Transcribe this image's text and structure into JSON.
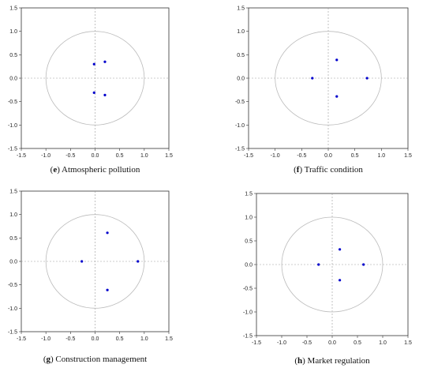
{
  "chart_data": [
    {
      "type": "scatter",
      "letter": "e",
      "caption": "Atmospheric pollution",
      "xlim": [
        -1.5,
        1.5
      ],
      "ylim": [
        -1.5,
        1.5
      ],
      "xticks": [
        "-1.5",
        "-1.0",
        "-0.5",
        "0.0",
        "0.5",
        "1.0",
        "1.5"
      ],
      "yticks": [
        "1.5",
        "1.0",
        "0.5",
        "0.0",
        "-0.5",
        "-1.0",
        "-1.5"
      ],
      "unit_circle": true,
      "point_color": "#0000cc",
      "points": [
        {
          "x": -0.02,
          "y": 0.3
        },
        {
          "x": 0.2,
          "y": 0.35
        },
        {
          "x": -0.02,
          "y": -0.31
        },
        {
          "x": 0.2,
          "y": -0.36
        }
      ]
    },
    {
      "type": "scatter",
      "letter": "f",
      "caption": "Traffic condition",
      "xlim": [
        -1.5,
        1.5
      ],
      "ylim": [
        -1.5,
        1.5
      ],
      "xticks": [
        "-1.5",
        "-1.0",
        "-0.5",
        "0.0",
        "0.5",
        "1.0",
        "1.5"
      ],
      "yticks": [
        "1.5",
        "1.0",
        "0.5",
        "0.0",
        "-0.5",
        "-1.0",
        "-1.5"
      ],
      "unit_circle": true,
      "point_color": "#0000cc",
      "points": [
        {
          "x": -0.3,
          "y": 0.0
        },
        {
          "x": 0.16,
          "y": 0.39
        },
        {
          "x": 0.16,
          "y": -0.39
        },
        {
          "x": 0.73,
          "y": 0.0
        }
      ]
    },
    {
      "type": "scatter",
      "letter": "g",
      "caption": "Construction management",
      "xlim": [
        -1.5,
        1.5
      ],
      "ylim": [
        -1.5,
        1.5
      ],
      "xticks": [
        "-1.5",
        "-1.0",
        "-0.5",
        "0.0",
        "0.5",
        "1.0",
        "1.5"
      ],
      "yticks": [
        "1.5",
        "1.0",
        "0.5",
        "0.0",
        "-0.5",
        "-1.0",
        "-1.5"
      ],
      "unit_circle": true,
      "point_color": "#0000cc",
      "points": [
        {
          "x": -0.27,
          "y": 0.0
        },
        {
          "x": 0.25,
          "y": 0.61
        },
        {
          "x": 0.25,
          "y": -0.61
        },
        {
          "x": 0.87,
          "y": 0.0
        }
      ]
    },
    {
      "type": "scatter",
      "letter": "h",
      "caption": "Market regulation",
      "xlim": [
        -1.5,
        1.5
      ],
      "ylim": [
        -1.5,
        1.5
      ],
      "xticks": [
        "-1.5",
        "-1.0",
        "-0.5",
        "0.0",
        "0.5",
        "1.0",
        "1.5"
      ],
      "yticks": [
        "1.5",
        "1.0",
        "0.5",
        "0.0",
        "-0.5",
        "-1.0",
        "-1.5"
      ],
      "unit_circle": true,
      "point_color": "#0000cc",
      "points": [
        {
          "x": -0.27,
          "y": 0.0
        },
        {
          "x": 0.15,
          "y": 0.32
        },
        {
          "x": 0.15,
          "y": -0.33
        },
        {
          "x": 0.62,
          "y": 0.0
        }
      ]
    }
  ]
}
